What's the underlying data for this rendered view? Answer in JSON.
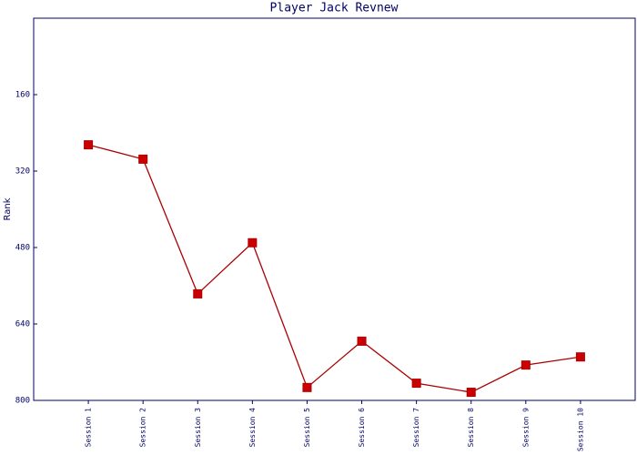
{
  "chart_data": {
    "type": "line",
    "title": "Player Jack Revnew",
    "y_label": "Rank",
    "categories": [
      "Session 1",
      "Session 2",
      "Session 3",
      "Session 4",
      "Session 5",
      "Session 6",
      "Session 7",
      "Session 8",
      "Session 9",
      "Session 10"
    ],
    "series": [
      {
        "name": "Rank",
        "color": "#aa0000",
        "values": [
          265,
          295,
          577,
          470,
          773,
          676,
          764,
          783,
          726,
          709
        ]
      }
    ],
    "ylim": [
      800,
      0
    ],
    "yticks": [
      160,
      320,
      480,
      640,
      800
    ],
    "grid": false
  }
}
